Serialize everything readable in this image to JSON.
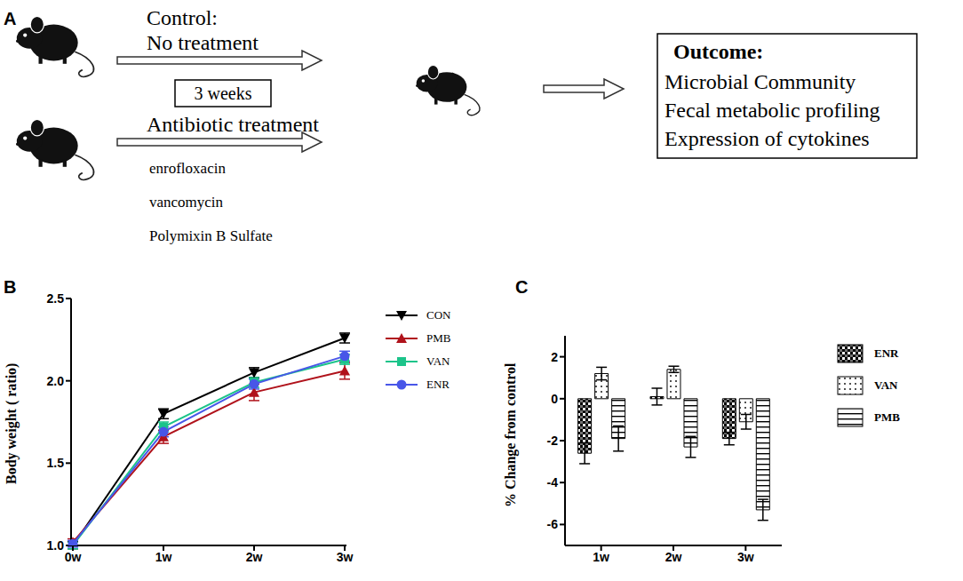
{
  "diagram": {
    "panel": "A",
    "control": {
      "label": "Control:",
      "text": "No treatment"
    },
    "duration": "3 weeks",
    "treatment": {
      "label": "Antibiotic treatment",
      "drugs": [
        "enrofloxacin",
        "vancomycin",
        "Polymixin B Sulfate"
      ]
    },
    "outcome": {
      "title": "Outcome:",
      "items": [
        "Microbial Community",
        "Fecal metabolic profiling",
        "Expression of cytokines"
      ]
    }
  },
  "chart_data": [
    {
      "type": "line",
      "title": "B",
      "y_label": "Body weight ( ratio)",
      "categories": [
        "0w",
        "1w",
        "2w",
        "3w"
      ],
      "ylim": [
        1,
        2.5
      ],
      "yticks": [
        {
          "value": 1,
          "label": "1.0"
        },
        {
          "value": 1.5,
          "label": "1.5"
        },
        {
          "value": 2,
          "label": "2.0"
        },
        {
          "value": 2.5,
          "label": "2.5"
        }
      ],
      "legend": "right",
      "series": [
        {
          "name": "CON",
          "color": "#000000",
          "marker": "triangle-down",
          "values": [
            1.0,
            1.8,
            2.05,
            2.26
          ],
          "errors": [
            0.02,
            0.03,
            0.03,
            0.03
          ]
        },
        {
          "name": "PMB",
          "color": "#b0121b",
          "marker": "triangle-up",
          "values": [
            1.02,
            1.66,
            1.93,
            2.06
          ],
          "errors": [
            0.02,
            0.04,
            0.05,
            0.05
          ]
        },
        {
          "name": "VAN",
          "color": "#1cc48a",
          "marker": "square",
          "values": [
            1.0,
            1.72,
            1.99,
            2.13
          ],
          "errors": [
            0.02,
            0.03,
            0.03,
            0.03
          ]
        },
        {
          "name": "ENR",
          "color": "#4856e8",
          "marker": "circle",
          "values": [
            1.01,
            1.69,
            1.98,
            2.15
          ],
          "errors": [
            0.02,
            0.03,
            0.03,
            0.03
          ]
        }
      ]
    },
    {
      "type": "bar",
      "title": "C",
      "y_label": "% Change from control",
      "categories": [
        "1w",
        "2w",
        "3w"
      ],
      "ylim": [
        -7,
        3
      ],
      "yticks": [
        -6,
        -4,
        -2,
        0,
        2
      ],
      "legend": "right",
      "series": [
        {
          "name": "ENR",
          "color": "#000000",
          "values": [
            -2.6,
            0.1,
            -1.9
          ],
          "errors": [
            0.5,
            0.4,
            0.3
          ]
        },
        {
          "name": "VAN",
          "color": "#000000",
          "values": [
            1.2,
            1.4,
            -1.1
          ],
          "errors": [
            0.3,
            0.15,
            0.35
          ]
        },
        {
          "name": "PMB",
          "color": "#000000",
          "values": [
            -1.9,
            -2.3,
            -5.3
          ],
          "errors": [
            0.6,
            0.5,
            0.5
          ]
        }
      ]
    }
  ]
}
